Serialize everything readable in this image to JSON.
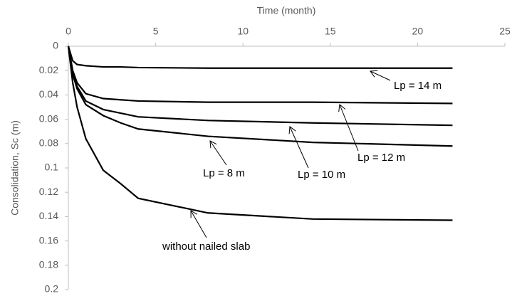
{
  "chart_data": {
    "type": "line",
    "xlabel": "Time (month)",
    "ylabel": "Consolidation, Sc (m)",
    "x": [
      0,
      0.25,
      0.5,
      1,
      2,
      3,
      4,
      8,
      14,
      22
    ],
    "series": [
      {
        "color": "#000000",
        "values": [
          0,
          0.012,
          0.015,
          0.016,
          0.017,
          0.017,
          0.0175,
          0.018,
          0.018,
          0.018
        ]
      },
      {
        "color": "#000000",
        "values": [
          0,
          0.02,
          0.03,
          0.039,
          0.043,
          0.044,
          0.045,
          0.046,
          0.046,
          0.047
        ]
      },
      {
        "color": "#000000",
        "values": [
          0,
          0.022,
          0.033,
          0.045,
          0.052,
          0.055,
          0.058,
          0.061,
          0.063,
          0.065
        ]
      },
      {
        "color": "#000000",
        "values": [
          0,
          0.023,
          0.035,
          0.048,
          0.057,
          0.063,
          0.068,
          0.074,
          0.079,
          0.082
        ]
      },
      {
        "color": "#000000",
        "values": [
          0,
          0.03,
          0.05,
          0.076,
          0.102,
          0.113,
          0.125,
          0.137,
          0.142,
          0.143
        ]
      }
    ],
    "annotations": [
      "Lp = 14 m",
      "Lp = 12 m",
      "Lp = 10 m",
      "Lp = 8 m",
      "without nailed slab"
    ],
    "xlim": [
      0,
      25
    ],
    "xticks": [
      0,
      5,
      10,
      15,
      20,
      25
    ],
    "ylim": [
      0,
      0.2
    ],
    "yticks": [
      0,
      0.02,
      0.04,
      0.06,
      0.08,
      0.1,
      0.12,
      0.14,
      0.16,
      0.18,
      0.2
    ],
    "y_inverted": true,
    "x_axis_top": true,
    "grid": false
  }
}
